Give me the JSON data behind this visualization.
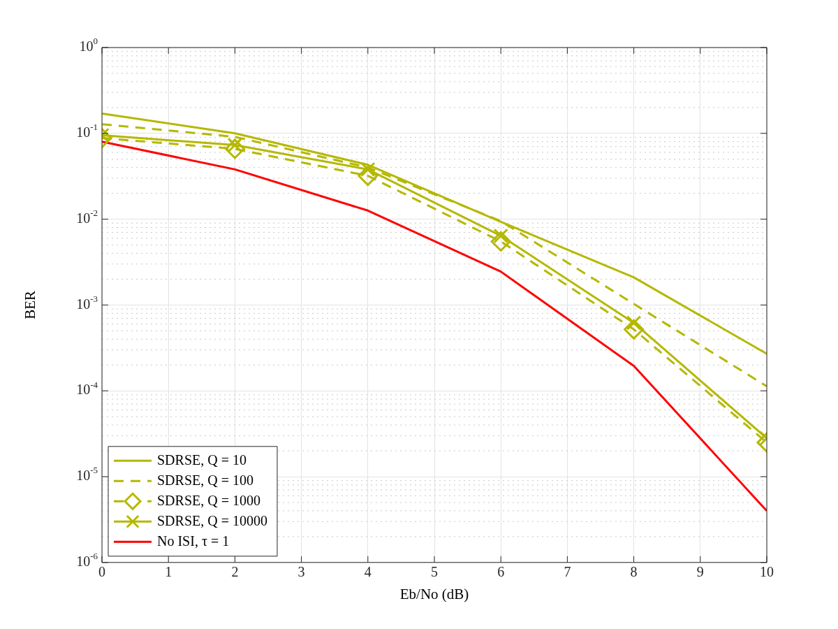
{
  "chart_data": {
    "type": "line",
    "xlabel": "Eb/No (dB)",
    "ylabel": "BER",
    "x": [
      0,
      2,
      4,
      6,
      8,
      10
    ],
    "xlim": [
      0,
      10
    ],
    "xticks": [
      0,
      1,
      2,
      3,
      4,
      5,
      6,
      7,
      8,
      9,
      10
    ],
    "ylim": [
      1e-06,
      1
    ],
    "log": "y",
    "yticks": [
      {
        "value": 1e-06,
        "label": "10$^{-6}$"
      },
      {
        "value": 1e-05,
        "label": "10$^{-5}$"
      },
      {
        "value": 0.0001,
        "label": "10$^{-4}$"
      },
      {
        "value": 0.001,
        "label": "10$^{-3}$"
      },
      {
        "value": 0.01,
        "label": "10$^{-2}$"
      },
      {
        "value": 0.1,
        "label": "10$^{-1}$"
      },
      {
        "value": 1,
        "label": "10$^{0}$"
      }
    ],
    "grid": true,
    "legend": "bottom left",
    "series": [
      {
        "name": "SDRSE, Q = 10",
        "color": "#b5b800",
        "line_style": "solid",
        "marker": "none",
        "values": [
          0.17,
          0.1,
          0.043,
          0.0093,
          0.0021,
          0.00027
        ]
      },
      {
        "name": "SDRSE, Q = 100",
        "color": "#b5b800",
        "line_style": "dashed",
        "marker": "none",
        "values": [
          0.128,
          0.091,
          0.04,
          0.0095,
          0.00103,
          0.000113
        ]
      },
      {
        "name": "SDRSE, Q = 1000",
        "color": "#b5b800",
        "line_style": "dashed",
        "marker": "diamond",
        "values": [
          0.088,
          0.066,
          0.032,
          0.0055,
          0.00052,
          2.5e-05
        ]
      },
      {
        "name": "SDRSE, Q = 10000",
        "color": "#b5b800",
        "line_style": "solid",
        "marker": "cross",
        "values": [
          0.095,
          0.073,
          0.038,
          0.0064,
          0.00062,
          2.8e-05
        ]
      },
      {
        "name": "No ISI, τ = 1",
        "color": "#ff0000",
        "line_style": "solid",
        "marker": "none",
        "values": [
          0.08,
          0.038,
          0.0126,
          0.00245,
          0.000195,
          4e-06
        ]
      }
    ]
  }
}
